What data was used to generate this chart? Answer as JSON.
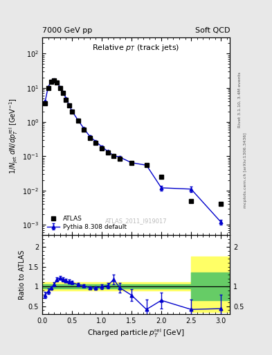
{
  "title_left": "7000 GeV pp",
  "title_right": "Soft QCD",
  "main_title": "Relative $p_T$ (track jets)",
  "ylabel_main": "$1/N_\\mathrm{jet}\\;dN/dp_T^\\mathrm{rel}$ [GeV$^{-1}$]",
  "ylabel_ratio": "Ratio to ATLAS",
  "xlabel": "Charged particle $p_T^\\mathrm{rel}$ [GeV]",
  "right_label_top": "Rivet 3.1.10, 3.4M events",
  "right_label_bot": "mcplots.cern.ch [arXiv:1306.3436]",
  "watermark": "ATLAS_2011_I919017",
  "atlas_x": [
    0.05,
    0.1,
    0.15,
    0.2,
    0.25,
    0.3,
    0.35,
    0.4,
    0.45,
    0.5,
    0.6,
    0.7,
    0.8,
    0.9,
    1.0,
    1.1,
    1.2,
    1.3,
    1.5,
    1.75,
    2.0,
    2.5,
    3.0
  ],
  "atlas_y": [
    3.5,
    10.0,
    15.0,
    16.5,
    14.0,
    10.0,
    7.0,
    4.5,
    3.0,
    2.0,
    1.1,
    0.6,
    0.35,
    0.25,
    0.17,
    0.13,
    0.1,
    0.085,
    0.065,
    0.055,
    0.025,
    0.005,
    0.004
  ],
  "pythia_x": [
    0.05,
    0.1,
    0.15,
    0.2,
    0.25,
    0.3,
    0.35,
    0.4,
    0.45,
    0.5,
    0.6,
    0.7,
    0.8,
    0.9,
    1.0,
    1.1,
    1.2,
    1.3,
    1.5,
    1.75,
    2.0,
    2.5,
    3.0
  ],
  "pythia_y": [
    4.0,
    10.5,
    15.5,
    17.2,
    14.5,
    10.5,
    7.5,
    5.0,
    3.2,
    2.1,
    1.15,
    0.65,
    0.38,
    0.27,
    0.19,
    0.14,
    0.105,
    0.095,
    0.065,
    0.055,
    0.012,
    0.011,
    0.0012
  ],
  "pythia_yerr_lo": [
    0.3,
    0.4,
    0.4,
    0.5,
    0.4,
    0.4,
    0.3,
    0.2,
    0.15,
    0.1,
    0.06,
    0.04,
    0.025,
    0.018,
    0.012,
    0.009,
    0.007,
    0.007,
    0.005,
    0.005,
    0.002,
    0.002,
    0.0002
  ],
  "pythia_yerr_hi": [
    0.3,
    0.4,
    0.4,
    0.5,
    0.4,
    0.4,
    0.3,
    0.2,
    0.15,
    0.1,
    0.06,
    0.04,
    0.025,
    0.018,
    0.012,
    0.009,
    0.007,
    0.007,
    0.005,
    0.005,
    0.002,
    0.002,
    0.0002
  ],
  "ratio_x": [
    0.05,
    0.1,
    0.15,
    0.2,
    0.25,
    0.3,
    0.35,
    0.4,
    0.45,
    0.5,
    0.6,
    0.7,
    0.8,
    0.9,
    1.0,
    1.1,
    1.2,
    1.3,
    1.5,
    1.75,
    2.0,
    2.5,
    3.0
  ],
  "ratio_y": [
    0.78,
    0.88,
    0.96,
    1.05,
    1.18,
    1.22,
    1.18,
    1.15,
    1.12,
    1.1,
    1.05,
    1.02,
    0.97,
    0.96,
    1.0,
    1.02,
    1.18,
    0.97,
    0.78,
    0.42,
    0.65,
    0.42,
    0.44
  ],
  "ratio_yerr": [
    0.08,
    0.07,
    0.05,
    0.05,
    0.05,
    0.05,
    0.05,
    0.05,
    0.05,
    0.05,
    0.04,
    0.04,
    0.04,
    0.04,
    0.06,
    0.07,
    0.12,
    0.12,
    0.15,
    0.25,
    0.2,
    0.25,
    0.35
  ],
  "ylim_main": [
    0.0005,
    300.0
  ],
  "ylim_ratio": [
    0.3,
    2.3
  ],
  "xlim": [
    0.0,
    3.15
  ],
  "bg_color": "#e8e8e8",
  "plot_bg": "#ffffff",
  "atlas_color": "#000000",
  "pythia_color": "#0000cc",
  "yellow_color": "#ffff66",
  "green_color": "#66cc66"
}
